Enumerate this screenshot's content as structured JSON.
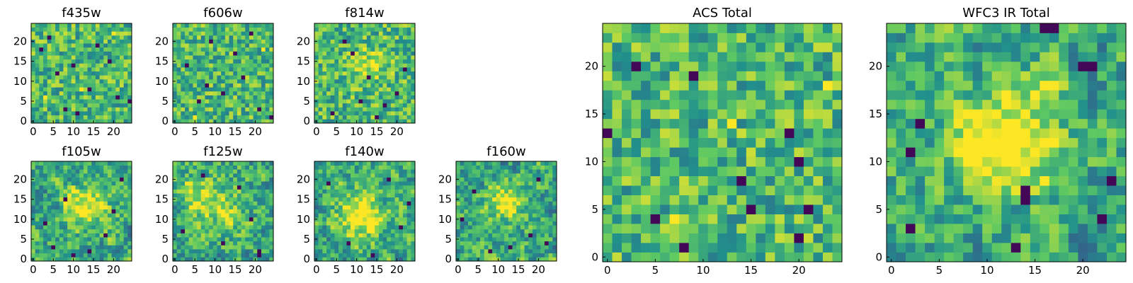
{
  "figure": {
    "colormap": "viridis",
    "colormap_stops": [
      "#440154",
      "#3b528b",
      "#21918c",
      "#5ec962",
      "#fde725"
    ],
    "background": "#ffffff"
  },
  "chart_data": [
    {
      "type": "heatmap",
      "title": "f435w",
      "grid_size": [
        25,
        25
      ],
      "xlim": [
        -0.5,
        24.5
      ],
      "ylim": [
        -0.5,
        24.5
      ],
      "xticks": [
        0,
        5,
        10,
        15,
        20
      ],
      "yticks": [
        0,
        5,
        10,
        15,
        20
      ],
      "xtick_labels": [
        "0",
        "5",
        "10",
        "15",
        "20"
      ],
      "ytick_labels": [
        "0",
        "5",
        "10",
        "15",
        "20"
      ],
      "texture": "noise",
      "smoothness": 0,
      "seed": 11,
      "dark_pixels": [
        [
          2,
          18
        ],
        [
          6,
          12
        ],
        [
          8,
          3
        ],
        [
          11,
          2
        ],
        [
          14,
          8
        ],
        [
          19,
          15
        ],
        [
          21,
          6
        ],
        [
          24,
          5
        ],
        [
          4,
          21
        ],
        [
          16,
          19
        ],
        [
          10,
          14
        ]
      ],
      "bright_pixels": [
        [
          20,
          22
        ],
        [
          12,
          8
        ],
        [
          3,
          6
        ]
      ],
      "peaks": []
    },
    {
      "type": "heatmap",
      "title": "f606w",
      "grid_size": [
        25,
        25
      ],
      "xlim": [
        -0.5,
        24.5
      ],
      "ylim": [
        -0.5,
        24.5
      ],
      "xticks": [
        0,
        5,
        10,
        15,
        20
      ],
      "yticks": [
        0,
        5,
        10,
        15,
        20
      ],
      "xtick_labels": [
        "0",
        "5",
        "10",
        "15",
        "20"
      ],
      "ytick_labels": [
        "0",
        "5",
        "10",
        "15",
        "20"
      ],
      "texture": "noise",
      "smoothness": 0,
      "seed": 23,
      "dark_pixels": [
        [
          3,
          14
        ],
        [
          9,
          20
        ],
        [
          12,
          7
        ],
        [
          17,
          11
        ],
        [
          21,
          3
        ],
        [
          6,
          5
        ],
        [
          15,
          17
        ],
        [
          24,
          1
        ],
        [
          19,
          22
        ],
        [
          8,
          9
        ]
      ],
      "bright_pixels": [
        [
          5,
          1
        ],
        [
          22,
          18
        ]
      ],
      "peaks": []
    },
    {
      "type": "heatmap",
      "title": "f814w",
      "grid_size": [
        25,
        25
      ],
      "xlim": [
        -0.5,
        24.5
      ],
      "ylim": [
        -0.5,
        24.5
      ],
      "xticks": [
        0,
        5,
        10,
        15,
        20
      ],
      "yticks": [
        0,
        5,
        10,
        15,
        20
      ],
      "xtick_labels": [
        "0",
        "5",
        "10",
        "15",
        "20"
      ],
      "ytick_labels": [
        "0",
        "5",
        "10",
        "15",
        "20"
      ],
      "texture": "noise",
      "smoothness": 0,
      "seed": 37,
      "dark_pixels": [
        [
          9,
          17
        ],
        [
          13,
          11
        ],
        [
          17,
          4
        ],
        [
          20,
          7
        ],
        [
          4,
          2
        ],
        [
          22,
          13
        ],
        [
          7,
          20
        ],
        [
          15,
          1
        ],
        [
          11,
          5
        ]
      ],
      "bright_pixels": [
        [
          14,
          14
        ]
      ],
      "peaks": [
        [
          13,
          14,
          0.25,
          3
        ]
      ]
    },
    {
      "type": "heatmap",
      "title": "f105w",
      "grid_size": [
        25,
        25
      ],
      "xlim": [
        -0.5,
        24.5
      ],
      "ylim": [
        -0.5,
        24.5
      ],
      "xticks": [
        0,
        5,
        10,
        15,
        20
      ],
      "yticks": [
        0,
        5,
        10,
        15,
        20
      ],
      "xtick_labels": [
        "0",
        "5",
        "10",
        "15",
        "20"
      ],
      "ytick_labels": [
        "0",
        "5",
        "10",
        "15",
        "20"
      ],
      "texture": "smooth",
      "smoothness": 1,
      "seed": 51,
      "dark_pixels": [
        [
          5,
          3
        ],
        [
          8,
          15
        ],
        [
          18,
          6
        ],
        [
          22,
          20
        ],
        [
          3,
          9
        ],
        [
          14,
          2
        ],
        [
          20,
          12
        ],
        [
          10,
          1
        ]
      ],
      "bright_pixels": [],
      "peaks": [
        [
          13,
          13,
          0.45,
          3.5
        ]
      ]
    },
    {
      "type": "heatmap",
      "title": "f125w",
      "grid_size": [
        25,
        25
      ],
      "xlim": [
        -0.5,
        24.5
      ],
      "ylim": [
        -0.5,
        24.5
      ],
      "xticks": [
        0,
        5,
        10,
        15,
        20
      ],
      "yticks": [
        0,
        5,
        10,
        15,
        20
      ],
      "xtick_labels": [
        "0",
        "5",
        "10",
        "15",
        "20"
      ],
      "ytick_labels": [
        "0",
        "5",
        "10",
        "15",
        "20"
      ],
      "texture": "smooth",
      "smoothness": 1,
      "seed": 67,
      "dark_pixels": [
        [
          21,
          1
        ],
        [
          21,
          2
        ],
        [
          16,
          18
        ],
        [
          19,
          10
        ],
        [
          7,
          21
        ],
        [
          2,
          7
        ],
        [
          12,
          4
        ]
      ],
      "bright_pixels": [],
      "peaks": [
        [
          5,
          16,
          0.35,
          3
        ],
        [
          12,
          12,
          0.25,
          4
        ]
      ]
    },
    {
      "type": "heatmap",
      "title": "f140w",
      "grid_size": [
        25,
        25
      ],
      "xlim": [
        -0.5,
        24.5
      ],
      "ylim": [
        -0.5,
        24.5
      ],
      "xticks": [
        0,
        5,
        10,
        15,
        20
      ],
      "yticks": [
        0,
        5,
        10,
        15,
        20
      ],
      "xtick_labels": [
        "0",
        "5",
        "10",
        "15",
        "20"
      ],
      "ytick_labels": [
        "0",
        "5",
        "10",
        "15",
        "20"
      ],
      "texture": "smooth",
      "smoothness": 1,
      "seed": 79,
      "dark_pixels": [
        [
          14,
          1
        ],
        [
          21,
          8
        ],
        [
          3,
          19
        ],
        [
          18,
          20
        ],
        [
          8,
          4
        ],
        [
          23,
          14
        ]
      ],
      "bright_pixels": [],
      "peaks": [
        [
          11,
          11,
          0.5,
          4
        ]
      ]
    },
    {
      "type": "heatmap",
      "title": "f160w",
      "grid_size": [
        25,
        25
      ],
      "xlim": [
        -0.5,
        24.5
      ],
      "ylim": [
        -0.5,
        24.5
      ],
      "xticks": [
        0,
        5,
        10,
        15,
        20
      ],
      "yticks": [
        0,
        5,
        10,
        15,
        20
      ],
      "xtick_labels": [
        "0",
        "5",
        "10",
        "15",
        "20"
      ],
      "ytick_labels": [
        "0",
        "5",
        "10",
        "15",
        "20"
      ],
      "texture": "smooth",
      "smoothness": 1,
      "seed": 93,
      "dark_pixels": [
        [
          18,
          6
        ],
        [
          22,
          4
        ],
        [
          8,
          2
        ],
        [
          4,
          17
        ],
        [
          20,
          20
        ],
        [
          13,
          3
        ],
        [
          1,
          10
        ]
      ],
      "bright_pixels": [],
      "peaks": [
        [
          12,
          14,
          0.45,
          3
        ]
      ]
    },
    {
      "type": "heatmap",
      "title": "ACS Total",
      "grid_size": [
        25,
        25
      ],
      "xlim": [
        -0.5,
        24.5
      ],
      "ylim": [
        -0.5,
        24.5
      ],
      "xticks": [
        0,
        5,
        10,
        15,
        20
      ],
      "yticks": [
        0,
        5,
        10,
        15,
        20
      ],
      "xtick_labels": [
        "0",
        "5",
        "10",
        "15",
        "20"
      ],
      "ytick_labels": [
        "0",
        "5",
        "10",
        "15",
        "20"
      ],
      "texture": "noise",
      "smoothness": 0,
      "seed": 107,
      "dark_pixels": [
        [
          9,
          19
        ],
        [
          0,
          13
        ],
        [
          15,
          5
        ],
        [
          21,
          5
        ],
        [
          5,
          4
        ],
        [
          20,
          10
        ],
        [
          19,
          13
        ],
        [
          8,
          1
        ],
        [
          20,
          2
        ],
        [
          14,
          8
        ],
        [
          3,
          20
        ]
      ],
      "bright_pixels": [
        [
          7,
          4
        ],
        [
          23,
          18
        ],
        [
          13,
          14
        ]
      ],
      "peaks": []
    },
    {
      "type": "heatmap",
      "title": "WFC3 IR Total",
      "grid_size": [
        25,
        25
      ],
      "xlim": [
        -0.5,
        24.5
      ],
      "ylim": [
        -0.5,
        24.5
      ],
      "xticks": [
        0,
        5,
        10,
        15,
        20
      ],
      "yticks": [
        0,
        5,
        10,
        15,
        20
      ],
      "xtick_labels": [
        "0",
        "5",
        "10",
        "15",
        "20"
      ],
      "ytick_labels": [
        "0",
        "5",
        "10",
        "15",
        "20"
      ],
      "texture": "smooth",
      "smoothness": 1,
      "seed": 131,
      "dark_pixels": [
        [
          16,
          24
        ],
        [
          17,
          24
        ],
        [
          2,
          11
        ],
        [
          2,
          3
        ],
        [
          14,
          6
        ],
        [
          14,
          7
        ],
        [
          20,
          20
        ],
        [
          21,
          20
        ],
        [
          23,
          8
        ],
        [
          13,
          1
        ],
        [
          22,
          4
        ],
        [
          3,
          14
        ]
      ],
      "bright_pixels": [
        [
          16,
          8
        ]
      ],
      "peaks": [
        [
          12,
          12,
          0.6,
          3.5
        ],
        [
          16,
          18,
          0.25,
          1.5
        ]
      ]
    }
  ]
}
